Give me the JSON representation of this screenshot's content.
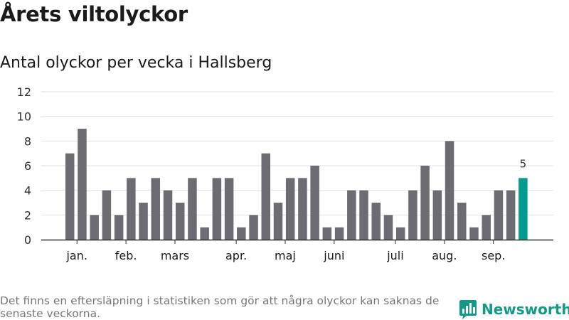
{
  "title": "Årets viltolyckor",
  "subtitle": "Antal olyckor per vecka i Hallsberg",
  "footnote": "Det finns en eftersläpning i statistiken som gör att några olyckor kan saknas de senaste veckorna.",
  "brand": {
    "name": "Newsworthy",
    "icon": "newsworthy-logo-icon",
    "color": "#129a86"
  },
  "colors": {
    "bar": "#6d6c72",
    "highlight": "#009c8f",
    "grid": "#e2e2e2",
    "axis": "#333333"
  },
  "chart_data": {
    "type": "bar",
    "title": "Årets viltolyckor",
    "subtitle": "Antal olyckor per vecka i Hallsberg",
    "values": [
      7,
      9,
      2,
      4,
      2,
      5,
      3,
      5,
      4,
      3,
      5,
      1,
      5,
      5,
      1,
      2,
      7,
      3,
      5,
      5,
      6,
      1,
      1,
      4,
      4,
      3,
      2,
      1,
      4,
      6,
      4,
      8,
      3,
      1,
      2,
      4,
      4,
      5
    ],
    "highlight_index": 37,
    "highlight_label": "5",
    "ylim": [
      0,
      12
    ],
    "yticks": [
      0,
      2,
      4,
      6,
      8,
      10,
      12
    ],
    "month_labels": [
      {
        "label": "jan.",
        "week": 1
      },
      {
        "label": "feb.",
        "week": 5
      },
      {
        "label": "mars",
        "week": 9
      },
      {
        "label": "apr.",
        "week": 14
      },
      {
        "label": "maj",
        "week": 18
      },
      {
        "label": "juni",
        "week": 22
      },
      {
        "label": "juli",
        "week": 27
      },
      {
        "label": "aug.",
        "week": 31
      },
      {
        "label": "sep.",
        "week": 35
      }
    ],
    "grid": true,
    "legend": "none"
  }
}
